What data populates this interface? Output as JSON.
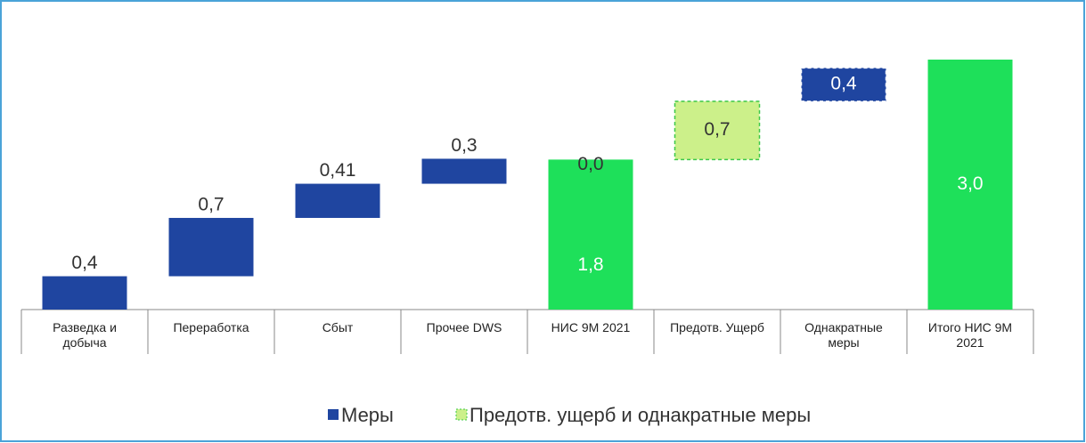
{
  "chart_data": {
    "type": "waterfall",
    "categories": [
      "Разведка и добыча",
      "Переработка",
      "Сбыт",
      "Прочее DWS",
      "НИС 9М 2021",
      "Предотв. Ущерб",
      "Однакратные меры",
      "Итого НИС 9М 2021"
    ],
    "values": [
      0.4,
      0.7,
      0.41,
      0.3,
      1.8,
      0.7,
      0.4,
      3.0
    ],
    "value_labels": [
      "0,4",
      "0,7",
      "0,41",
      "0,3",
      "1,8",
      "0,7",
      "0,4",
      "3,0"
    ],
    "kinds": [
      "step",
      "step",
      "step",
      "step",
      "total",
      "step",
      "step",
      "total"
    ],
    "bar_colors": [
      "#1f45a0",
      "#1f45a0",
      "#1f45a0",
      "#1f45a0",
      "#1ee05a",
      "#ccf08a",
      "#1f45a0",
      "#1ee05a"
    ],
    "bar_dashed": [
      false,
      false,
      false,
      false,
      false,
      true,
      true,
      false
    ],
    "annotation": "0,0",
    "legend": [
      {
        "name": "Меры",
        "color": "#1f45a0"
      },
      {
        "name": "Предотв. ущерб и однакратные меры",
        "color": "#ccf08a"
      }
    ]
  }
}
